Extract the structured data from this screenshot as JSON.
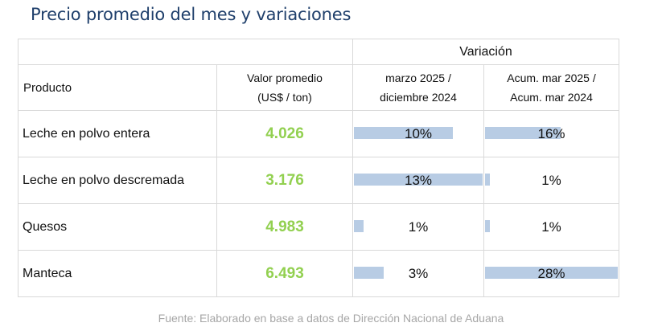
{
  "title": "Precio promedio del mes y variaciones",
  "table": {
    "variation_header": "Variación",
    "col_product": "Producto",
    "col_value_line1": "Valor promedio",
    "col_value_line2": "(US$ / ton)",
    "col_var1_line1": "marzo 2025 /",
    "col_var1_line2": "diciembre 2024",
    "col_var2_line1": "Acum. mar 2025 /",
    "col_var2_line2": "Acum. mar 2024",
    "bar_color": "#b8cce4",
    "value_color": "#92d050",
    "rows": [
      {
        "product": "Leche en polvo entera",
        "value": "4.026",
        "var_monthly": "10%",
        "var_monthly_num": 10,
        "var_accum": "16%",
        "var_accum_num": 16
      },
      {
        "product": "Leche en polvo descremada",
        "value": "3.176",
        "var_monthly": "13%",
        "var_monthly_num": 13,
        "var_accum": "1%",
        "var_accum_num": 1
      },
      {
        "product": "Quesos",
        "value": "4.983",
        "var_monthly": "1%",
        "var_monthly_num": 1,
        "var_accum": "1%",
        "var_accum_num": 1
      },
      {
        "product": "Manteca",
        "value": "6.493",
        "var_monthly": "3%",
        "var_monthly_num": 3,
        "var_accum": "28%",
        "var_accum_num": 28
      }
    ]
  },
  "source": "Fuente: Elaborado en base a datos de Dirección Nacional de Aduana"
}
